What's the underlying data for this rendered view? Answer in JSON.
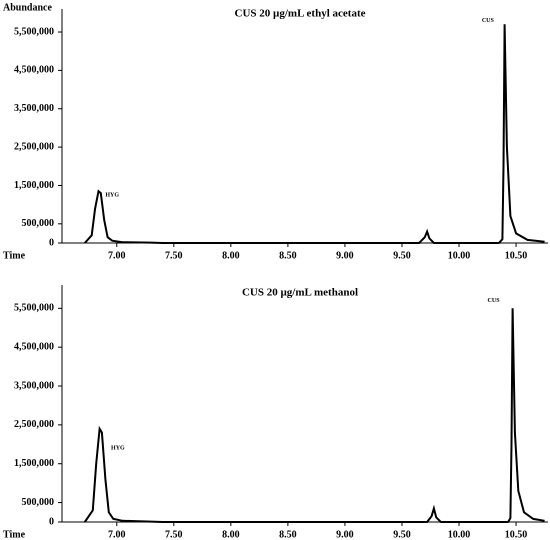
{
  "chart_data": [
    {
      "type": "line",
      "title": "CUS 20 µg/mL ethyl acetate",
      "ylabel": "Abundance",
      "xlabel": "Time",
      "color": "#000000",
      "x": [
        6.72,
        6.78,
        6.81,
        6.84,
        6.86,
        6.89,
        6.92,
        6.96,
        7.05,
        7.3,
        7.4,
        9.65,
        9.7,
        9.72,
        9.74,
        9.78,
        10.35,
        10.38,
        10.39,
        10.4,
        10.42,
        10.45,
        10.5,
        10.6,
        10.75
      ],
      "values": [
        0,
        200000,
        900000,
        1350000,
        1300000,
        600000,
        150000,
        60000,
        20000,
        10000,
        0,
        0,
        150000,
        300000,
        120000,
        0,
        0,
        100000,
        2000000,
        5700000,
        2500000,
        700000,
        250000,
        80000,
        30000
      ],
      "annotations": [
        "HYG",
        "CUS"
      ],
      "xlim": [
        6.52,
        10.78
      ],
      "ylim": [
        0,
        6100000
      ],
      "xticks": [
        {
          "value": 7,
          "label": "7.00"
        },
        {
          "value": 7.5,
          "label": "7.50"
        },
        {
          "value": 8,
          "label": "8.00"
        },
        {
          "value": 8.5,
          "label": "8.50"
        },
        {
          "value": 9,
          "label": "9.00"
        },
        {
          "value": 9.5,
          "label": "9.50"
        },
        {
          "value": 10,
          "label": "10.00"
        },
        {
          "value": 10.5,
          "label": "10.50"
        }
      ],
      "yticks": [
        0,
        {
          "value": 500000,
          "label": "500,000"
        },
        {
          "value": 1500000,
          "label": "1,500,000"
        },
        {
          "value": 2500000,
          "label": "2,500,000"
        },
        {
          "value": 3500000,
          "label": "3,500,000"
        },
        {
          "value": 4500000,
          "label": "4,500,000"
        },
        {
          "value": 5500000,
          "label": "5,500,000"
        }
      ]
    },
    {
      "type": "line",
      "title": "CUS 20 µg/mL methanol",
      "xlabel": "Time",
      "color": "#000000",
      "x": [
        6.72,
        6.79,
        6.82,
        6.85,
        6.87,
        6.9,
        6.93,
        6.97,
        7.05,
        7.3,
        7.4,
        9.72,
        9.76,
        9.78,
        9.8,
        9.84,
        10.43,
        10.45,
        10.46,
        10.47,
        10.49,
        10.52,
        10.57,
        10.65,
        10.75
      ],
      "values": [
        0,
        300000,
        1500000,
        2400000,
        2300000,
        1100000,
        250000,
        80000,
        30000,
        10000,
        0,
        0,
        150000,
        350000,
        120000,
        0,
        0,
        100000,
        2000000,
        5500000,
        2300000,
        800000,
        250000,
        80000,
        30000
      ],
      "annotations": [
        "HYG",
        "CUS"
      ],
      "xlim": [
        6.52,
        10.78
      ],
      "ylim": [
        0,
        6100000
      ],
      "xticks": [
        {
          "value": 7,
          "label": "7.00"
        },
        {
          "value": 7.5,
          "label": "7.50"
        },
        {
          "value": 8,
          "label": "8.00"
        },
        {
          "value": 8.5,
          "label": "8.50"
        },
        {
          "value": 9,
          "label": "9.00"
        },
        {
          "value": 9.5,
          "label": "9.50"
        },
        {
          "value": 10,
          "label": "10.00"
        },
        {
          "value": 10.5,
          "label": "10.50"
        }
      ],
      "yticks": [
        0,
        {
          "value": 500000,
          "label": "500,000"
        },
        {
          "value": 1500000,
          "label": "1,500,000"
        },
        {
          "value": 2500000,
          "label": "2,500,000"
        },
        {
          "value": 3500000,
          "label": "3,500,000"
        },
        {
          "value": 4500000,
          "label": "4,500,000"
        },
        {
          "value": 5500000,
          "label": "5,500,000"
        }
      ]
    }
  ]
}
